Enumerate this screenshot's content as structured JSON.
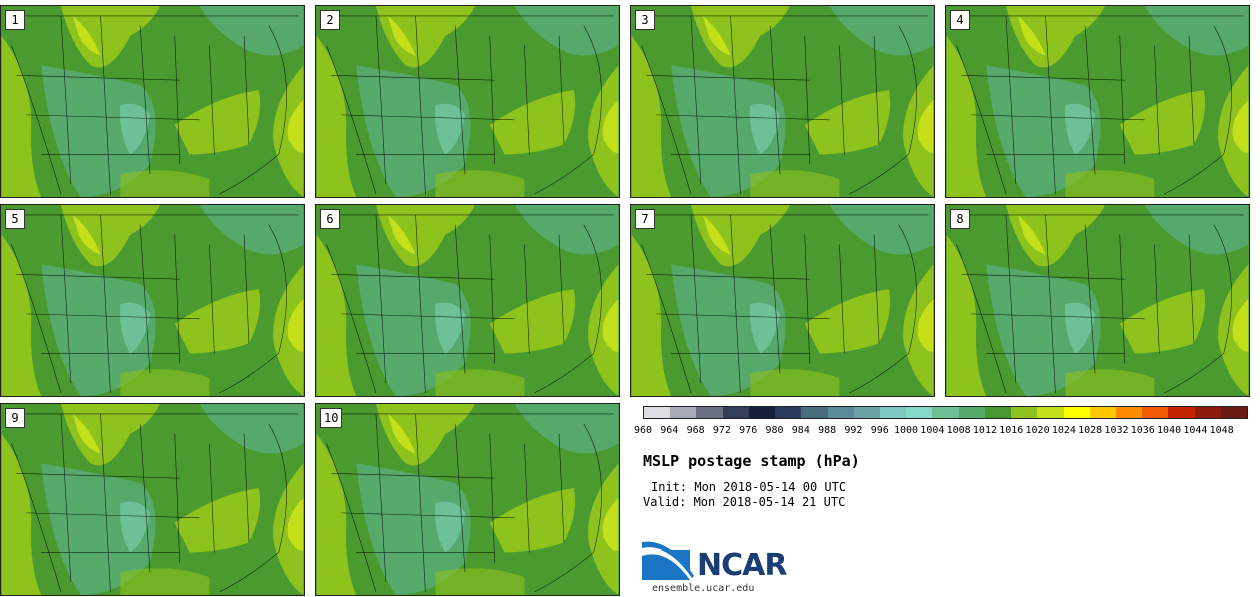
{
  "title": "MSLP postage stamp (hPa)",
  "init": "Init: Mon 2018-05-14 00 UTC",
  "valid": "Valid: Mon 2018-05-14 21 UTC",
  "members": [
    "1",
    "2",
    "3",
    "4",
    "5",
    "6",
    "7",
    "8",
    "9",
    "10"
  ],
  "colorbar": {
    "labels": [
      "960",
      "964",
      "968",
      "972",
      "976",
      "980",
      "984",
      "988",
      "992",
      "996",
      "1000",
      "1004",
      "1008",
      "1012",
      "1016",
      "1020",
      "1024",
      "1028",
      "1032",
      "1036",
      "1040",
      "1044",
      "1048"
    ],
    "colors": [
      "#dcdde3",
      "#a6a9b6",
      "#6a6f86",
      "#343d5a",
      "#15203d",
      "#283c5c",
      "#466c7c",
      "#5a8a96",
      "#6aa3a8",
      "#7ec8c2",
      "#86d9c8",
      "#6ec197",
      "#56a86b",
      "#46972f",
      "#8ec31d",
      "#c4e01a",
      "#ffff00",
      "#ffc800",
      "#ff8c00",
      "#f25a00",
      "#c22400",
      "#8e1a0e",
      "#6a1a10"
    ]
  },
  "logo": {
    "text": "NCAR",
    "url": "ensemble.ucar.edu"
  }
}
